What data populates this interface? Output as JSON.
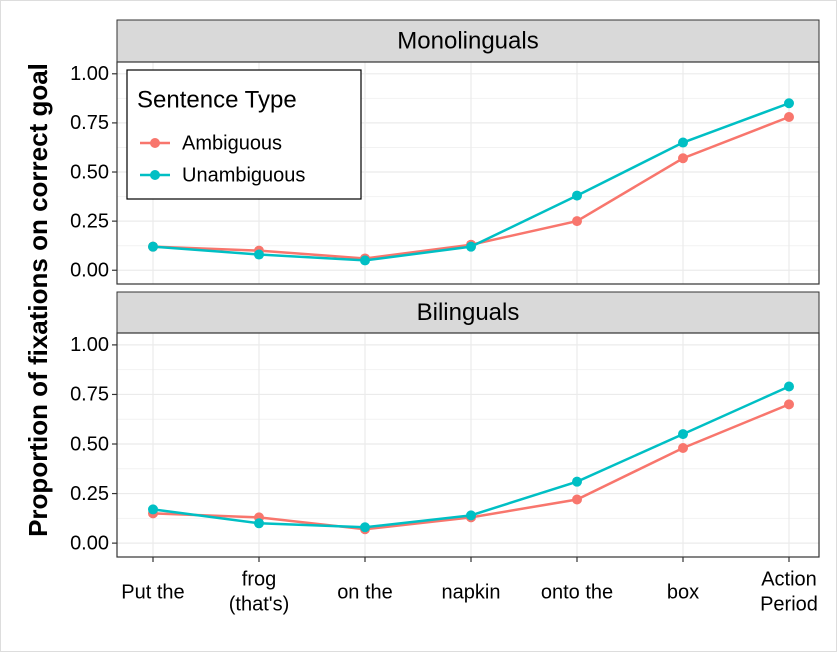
{
  "chart_data": {
    "type": "line",
    "y_label": "Proportion of fixations on correct goal",
    "legend_title": "Sentence Type",
    "categories": [
      "Put the",
      "frog\n(that's)",
      "on the",
      "napkin",
      "onto the",
      "box",
      "Action\nPeriod"
    ],
    "ylim": [
      -0.07,
      1.06
    ],
    "yticks": [
      {
        "value": 0,
        "label": "0.00"
      },
      {
        "value": 0.25,
        "label": "0.25"
      },
      {
        "value": 0.5,
        "label": "0.50"
      },
      {
        "value": 0.75,
        "label": "0.75"
      },
      {
        "value": 1,
        "label": "1.00"
      }
    ],
    "grid": true,
    "legend_position": "top-left",
    "facets": [
      {
        "title": "Monolinguals",
        "series": [
          {
            "name": "Ambiguous",
            "color": "#F8766D",
            "values": [
              0.12,
              0.1,
              0.06,
              0.13,
              0.25,
              0.57,
              0.78
            ]
          },
          {
            "name": "Unambiguous",
            "color": "#00BFC4",
            "values": [
              0.12,
              0.08,
              0.05,
              0.12,
              0.38,
              0.65,
              0.85
            ]
          }
        ]
      },
      {
        "title": "Bilinguals",
        "series": [
          {
            "name": "Ambiguous",
            "color": "#F8766D",
            "values": [
              0.15,
              0.13,
              0.07,
              0.13,
              0.22,
              0.48,
              0.7
            ]
          },
          {
            "name": "Unambiguous",
            "color": "#00BFC4",
            "values": [
              0.17,
              0.1,
              0.08,
              0.14,
              0.31,
              0.55,
              0.79
            ]
          }
        ]
      }
    ]
  }
}
